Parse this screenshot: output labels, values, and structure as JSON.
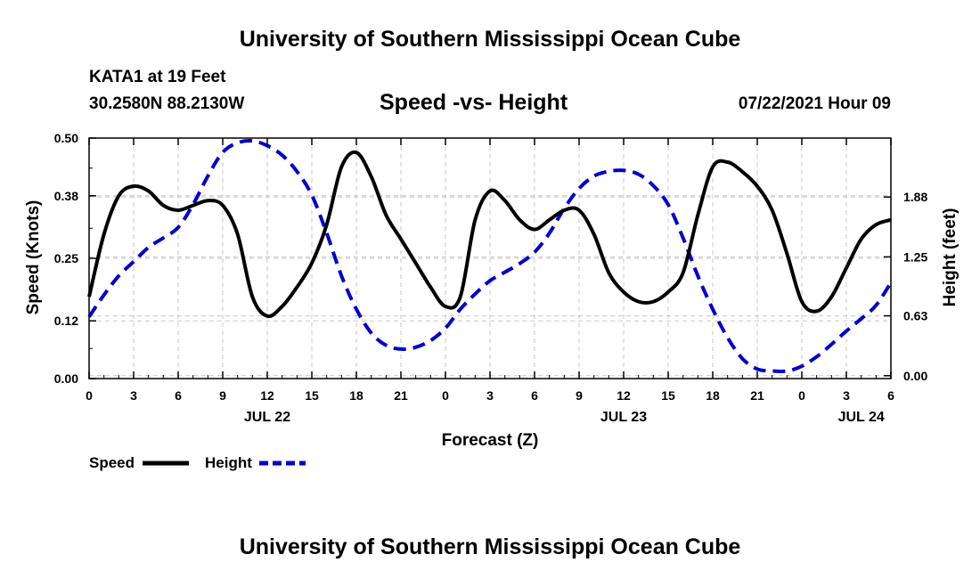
{
  "header": {
    "top_title": "University of Southern Mississippi Ocean Cube",
    "bottom_title": "University of Southern Mississippi Ocean Cube",
    "station": "KATA1 at 19 Feet",
    "coords": "30.2580N  88.2130W",
    "datetime": "07/22/2021 Hour 09"
  },
  "chart_data": {
    "type": "line",
    "title": "Speed -vs- Height",
    "xlabel": "Forecast (Z)",
    "ylabel_left": "Speed (Knots)",
    "ylabel_right": "Height (feet)",
    "x_range": [
      0,
      54
    ],
    "x_ticks": [
      0,
      3,
      6,
      9,
      12,
      15,
      18,
      21,
      24,
      27,
      30,
      33,
      36,
      39,
      42,
      45,
      48,
      51,
      54
    ],
    "x_tick_labels": [
      "0",
      "3",
      "6",
      "9",
      "12",
      "15",
      "18",
      "21",
      "0",
      "3",
      "6",
      "9",
      "12",
      "15",
      "18",
      "21",
      "0",
      "3",
      "6"
    ],
    "date_labels": [
      {
        "x": 12,
        "label": "JUL 22"
      },
      {
        "x": 36,
        "label": "JUL 23"
      },
      {
        "x": 52,
        "label": "JUL 24"
      }
    ],
    "left_axis": {
      "range": [
        0,
        0.5
      ],
      "ticks": [
        0.0,
        0.12,
        0.25,
        0.38,
        0.5
      ],
      "tick_labels": [
        "0.00",
        "0.12",
        "0.25",
        "0.38",
        "0.50"
      ]
    },
    "right_axis": {
      "range": [
        -0.03,
        2.5
      ],
      "ticks": [
        0.0,
        0.63,
        1.25,
        1.88
      ],
      "tick_labels": [
        "0.00",
        "0.63",
        "1.25",
        "1.88"
      ]
    },
    "grid": true,
    "legend_position": "bottom-left",
    "series": [
      {
        "name": "Speed",
        "axis": "left",
        "color": "#000000",
        "dash": "solid",
        "x": [
          0,
          1,
          2,
          3,
          4,
          5,
          6,
          7,
          8,
          9,
          10,
          11,
          12,
          13,
          14,
          15,
          16,
          17,
          18,
          19,
          20,
          21,
          22,
          23,
          24,
          25,
          26,
          27,
          28,
          29,
          30,
          31,
          32,
          33,
          34,
          35,
          36,
          37,
          38,
          39,
          40,
          41,
          42,
          43,
          44,
          45,
          46,
          47,
          48,
          49,
          50,
          51,
          52,
          53,
          54
        ],
        "values": [
          0.17,
          0.3,
          0.38,
          0.4,
          0.39,
          0.36,
          0.35,
          0.36,
          0.37,
          0.36,
          0.3,
          0.17,
          0.13,
          0.15,
          0.19,
          0.24,
          0.32,
          0.44,
          0.47,
          0.42,
          0.34,
          0.29,
          0.24,
          0.19,
          0.15,
          0.17,
          0.33,
          0.39,
          0.37,
          0.33,
          0.31,
          0.33,
          0.35,
          0.35,
          0.3,
          0.22,
          0.18,
          0.16,
          0.16,
          0.18,
          0.22,
          0.34,
          0.44,
          0.45,
          0.43,
          0.4,
          0.35,
          0.26,
          0.16,
          0.14,
          0.17,
          0.23,
          0.29,
          0.32,
          0.33
        ]
      },
      {
        "name": "Height",
        "axis": "right",
        "color": "#0000cc",
        "dash": "dashed",
        "x": [
          0,
          1,
          2,
          3,
          4,
          5,
          6,
          7,
          8,
          9,
          10,
          11,
          12,
          13,
          14,
          15,
          16,
          17,
          18,
          19,
          20,
          21,
          22,
          23,
          24,
          25,
          26,
          27,
          28,
          29,
          30,
          31,
          32,
          33,
          34,
          35,
          36,
          37,
          38,
          39,
          40,
          41,
          42,
          43,
          44,
          45,
          46,
          47,
          48,
          49,
          50,
          51,
          52,
          53,
          54
        ],
        "values": [
          0.62,
          0.85,
          1.05,
          1.2,
          1.35,
          1.45,
          1.56,
          1.8,
          2.1,
          2.35,
          2.45,
          2.47,
          2.42,
          2.32,
          2.15,
          1.9,
          1.5,
          1.05,
          0.7,
          0.45,
          0.32,
          0.28,
          0.3,
          0.37,
          0.5,
          0.7,
          0.86,
          1.0,
          1.09,
          1.18,
          1.3,
          1.5,
          1.76,
          1.97,
          2.1,
          2.15,
          2.16,
          2.12,
          2.0,
          1.8,
          1.45,
          1.05,
          0.7,
          0.4,
          0.18,
          0.07,
          0.05,
          0.05,
          0.1,
          0.2,
          0.33,
          0.47,
          0.6,
          0.74,
          0.98
        ]
      }
    ]
  }
}
